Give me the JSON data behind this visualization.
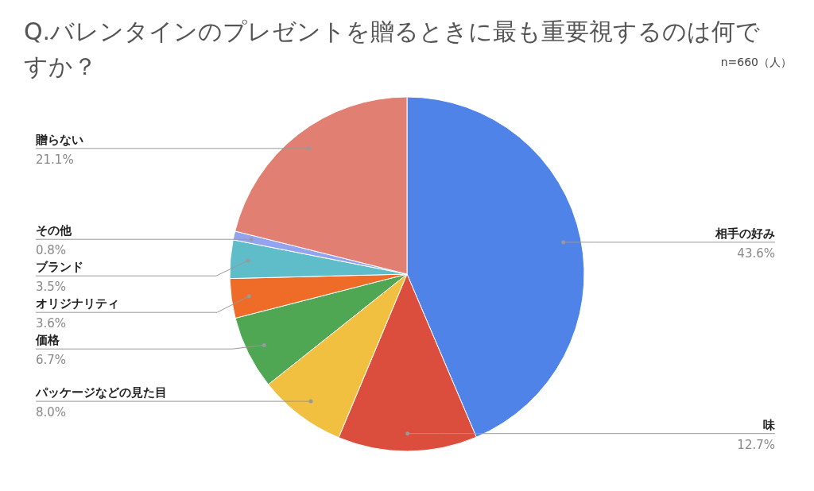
{
  "chart_data": {
    "type": "pie",
    "title": "Q.バレンタインのプレゼントを贈るときに最も重要視するのは何ですか？",
    "annotations": [
      "n=660（人）"
    ],
    "categories": [
      "相手の好み",
      "味",
      "パッケージなどの見た目",
      "価格",
      "オリジナリティ",
      "ブランド",
      "その他",
      "贈らない"
    ],
    "values": [
      43.6,
      12.7,
      8.0,
      6.7,
      3.6,
      3.5,
      0.8,
      21.1
    ],
    "colors": [
      "#5083e8",
      "#db4d3c",
      "#f1c040",
      "#4fa653",
      "#ee6c28",
      "#5ebdc8",
      "#94a3f0",
      "#e07f72"
    ],
    "value_labels": [
      "43.6%",
      "12.7%",
      "8.0%",
      "6.7%",
      "3.6%",
      "3.5%",
      "0.8%",
      "21.1%"
    ]
  }
}
